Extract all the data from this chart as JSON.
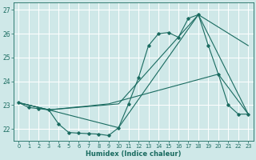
{
  "background_color": "#cfe8e8",
  "grid_color": "#ffffff",
  "line_color": "#1a6b60",
  "xlabel": "Humidex (Indice chaleur)",
  "xlim": [
    -0.5,
    23.5
  ],
  "ylim": [
    21.5,
    27.3
  ],
  "yticks": [
    22,
    23,
    24,
    25,
    26,
    27
  ],
  "xticks": [
    0,
    1,
    2,
    3,
    4,
    5,
    6,
    7,
    8,
    9,
    10,
    11,
    12,
    13,
    14,
    15,
    16,
    17,
    18,
    19,
    20,
    21,
    22,
    23
  ],
  "main_line": {
    "x": [
      0,
      1,
      2,
      3,
      4,
      5,
      6,
      7,
      8,
      9,
      10,
      11,
      12,
      13,
      14,
      15,
      16,
      17,
      18,
      19,
      20,
      21,
      22,
      23
    ],
    "y": [
      23.1,
      22.9,
      22.85,
      22.8,
      22.2,
      21.85,
      21.82,
      21.8,
      21.78,
      21.72,
      22.05,
      23.05,
      24.15,
      25.5,
      26.0,
      26.05,
      25.85,
      26.65,
      26.8,
      25.5,
      24.3,
      23.0,
      22.62,
      22.62
    ]
  },
  "envelope_lines": [
    {
      "x": [
        0,
        3,
        10,
        18,
        23
      ],
      "y": [
        23.1,
        22.8,
        22.05,
        26.8,
        22.62
      ]
    },
    {
      "x": [
        0,
        3,
        10,
        18,
        23
      ],
      "y": [
        23.1,
        22.8,
        23.05,
        26.8,
        25.5
      ]
    },
    {
      "x": [
        0,
        3,
        9,
        20,
        23
      ],
      "y": [
        23.1,
        22.8,
        23.05,
        24.3,
        22.62
      ]
    }
  ]
}
